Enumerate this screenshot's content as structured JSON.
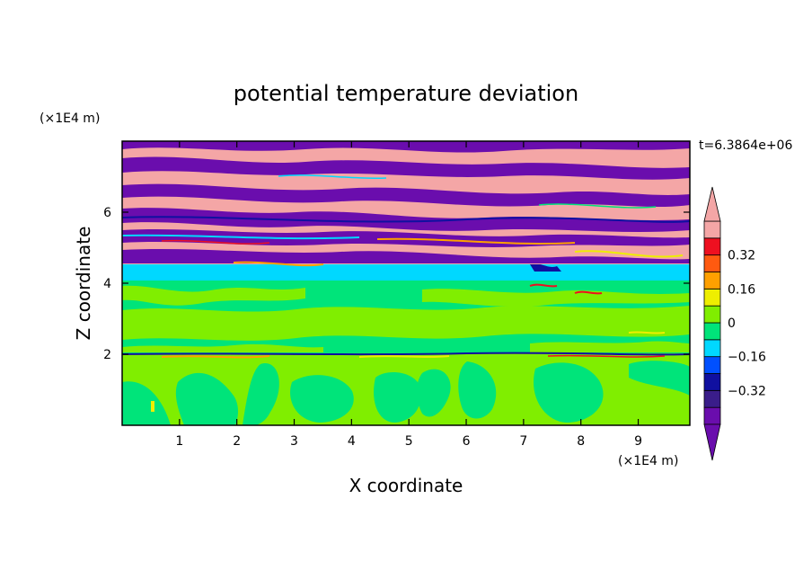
{
  "chart_data": {
    "type": "heatmap",
    "title": "potential temperature deviation",
    "xlabel": "X coordinate",
    "ylabel": "Z coordinate",
    "x_unit": "(×1E4 m)",
    "y_unit": "(×1E4 m)",
    "time_label": "t=6.3864e+06",
    "xlim": [
      0,
      9.9
    ],
    "ylim": [
      0,
      8
    ],
    "x_ticks": [
      1,
      2,
      3,
      4,
      5,
      6,
      7,
      8,
      9
    ],
    "y_ticks": [
      2,
      4,
      6
    ],
    "colorbar": {
      "levels": [
        -0.48,
        -0.4,
        -0.32,
        -0.24,
        -0.16,
        -0.08,
        0,
        0.08,
        0.16,
        0.24,
        0.32,
        0.4,
        0.48
      ],
      "tick_labels": [
        "0.32",
        "0.16",
        "0",
        "−0.16",
        "−0.32"
      ],
      "tick_values": [
        0.32,
        0.16,
        0,
        -0.16,
        -0.32
      ],
      "colors": [
        "#6a0dad",
        "#3a1d8a",
        "#1010a0",
        "#0050ff",
        "#00d8ff",
        "#00e47a",
        "#80ee00",
        "#eeee00",
        "#ffa000",
        "#ff5a10",
        "#ee1020",
        "#f4a6a6"
      ],
      "under_color": "#6a0dad",
      "over_color": "#f4a6a6"
    },
    "bands": [
      {
        "z_from": 0,
        "z_to": 2.0,
        "value": 0.04
      },
      {
        "z_from": 2.0,
        "z_to": 4.05,
        "value": -0.02
      },
      {
        "z_from": 4.05,
        "z_to": 4.5,
        "value": -0.12
      },
      {
        "z_from": 4.5,
        "z_to": 8,
        "value": "alternating -0.5 / 0.5"
      }
    ]
  }
}
